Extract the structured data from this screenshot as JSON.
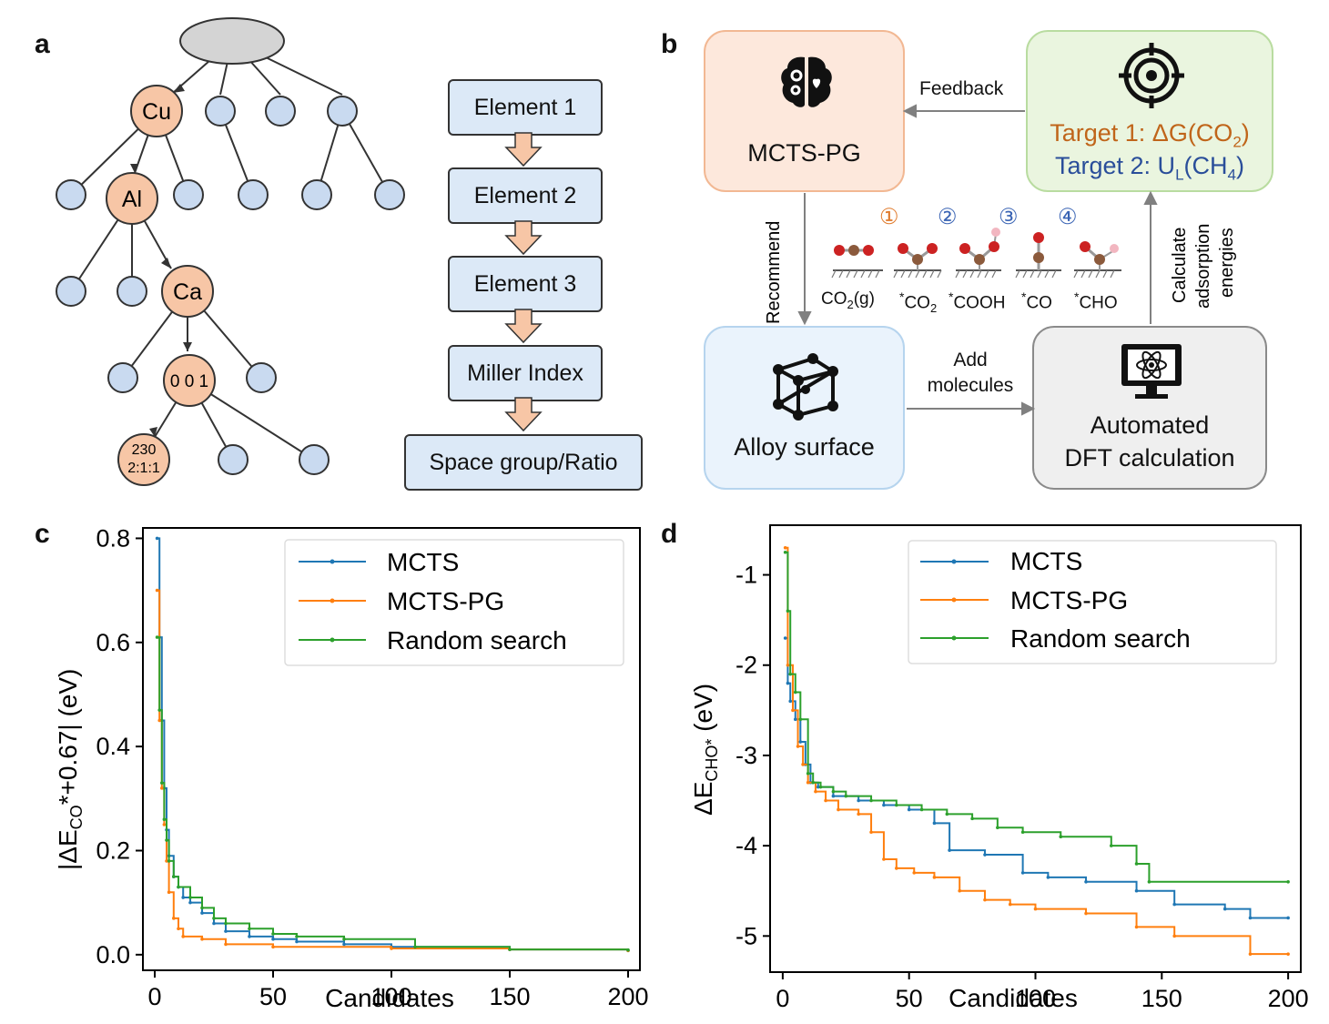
{
  "panels": {
    "a": "a",
    "b": "b",
    "c": "c",
    "d": "d"
  },
  "tree": {
    "node_cu": "Cu",
    "node_al": "Al",
    "node_ca": "Ca",
    "node_miller": "0 0 1",
    "node_sg_line1": "230",
    "node_sg_line2": "2:1:1"
  },
  "flow": [
    "Element 1",
    "Element 2",
    "Element 3",
    "Miller Index",
    "Space group/Ratio"
  ],
  "workflow": {
    "mcts_pg": "MCTS-PG",
    "feedback": "Feedback",
    "target1_prefix": "Target 1: ΔG(CO",
    "target1_sub": "2",
    "target1_suffix": ")",
    "target2_prefix": "Target 2: U",
    "target2_sub1": "L",
    "target2_mid": "(CH",
    "target2_sub2": "4",
    "target2_suffix": ")",
    "recommend": "Recommend",
    "calc_line1": "Calculate",
    "calc_line2": "adsorption",
    "calc_line3": "energies",
    "alloy": "Alloy surface",
    "add_line1": "Add",
    "add_line2": "molecules",
    "dft_line1": "Automated",
    "dft_line2": "DFT calculation",
    "steps": [
      "①",
      "②",
      "③",
      "④"
    ],
    "species": [
      "CO2(g)",
      "*CO2",
      "*COOH",
      "*CO",
      "*CHO"
    ],
    "colors": {
      "target1": "#c0651a",
      "target2": "#2a4e9a",
      "step1": "#e07a2b",
      "step_other": "#3a64b4"
    }
  },
  "chart_data": [
    {
      "panel": "c",
      "type": "line",
      "xlabel": "Candidates",
      "ylabel": "|ΔE_CO*+0.67| (eV)",
      "xlim": [
        -5,
        205
      ],
      "ylim": [
        -0.03,
        0.82
      ],
      "xticks": [
        0,
        50,
        100,
        150,
        200
      ],
      "yticks": [
        0.0,
        0.2,
        0.4,
        0.6,
        0.8
      ],
      "ytick_labels": [
        "0.0",
        "0.2",
        "0.4",
        "0.6",
        "0.8"
      ],
      "legend": "top-right",
      "series": [
        {
          "name": "MCTS",
          "color": "#1f77b4",
          "points": [
            [
              1,
              0.8
            ],
            [
              2,
              0.61
            ],
            [
              3,
              0.45
            ],
            [
              4,
              0.32
            ],
            [
              5,
              0.24
            ],
            [
              6,
              0.19
            ],
            [
              8,
              0.15
            ],
            [
              10,
              0.13
            ],
            [
              12,
              0.11
            ],
            [
              15,
              0.1
            ],
            [
              20,
              0.08
            ],
            [
              25,
              0.06
            ],
            [
              30,
              0.045
            ],
            [
              40,
              0.035
            ],
            [
              50,
              0.03
            ],
            [
              60,
              0.025
            ],
            [
              80,
              0.02
            ],
            [
              100,
              0.015
            ],
            [
              150,
              0.01
            ],
            [
              200,
              0.008
            ]
          ]
        },
        {
          "name": "MCTS-PG",
          "color": "#ff7f0e",
          "points": [
            [
              1,
              0.7
            ],
            [
              2,
              0.45
            ],
            [
              3,
              0.32
            ],
            [
              4,
              0.25
            ],
            [
              5,
              0.18
            ],
            [
              6,
              0.12
            ],
            [
              8,
              0.07
            ],
            [
              10,
              0.05
            ],
            [
              12,
              0.035
            ],
            [
              20,
              0.03
            ],
            [
              30,
              0.02
            ],
            [
              50,
              0.015
            ],
            [
              100,
              0.012
            ],
            [
              150,
              0.01
            ],
            [
              200,
              0.008
            ]
          ]
        },
        {
          "name": "Random search",
          "color": "#2ca02c",
          "points": [
            [
              1,
              0.61
            ],
            [
              2,
              0.47
            ],
            [
              3,
              0.33
            ],
            [
              4,
              0.26
            ],
            [
              5,
              0.22
            ],
            [
              6,
              0.18
            ],
            [
              8,
              0.15
            ],
            [
              10,
              0.13
            ],
            [
              15,
              0.11
            ],
            [
              20,
              0.09
            ],
            [
              25,
              0.07
            ],
            [
              30,
              0.06
            ],
            [
              40,
              0.05
            ],
            [
              50,
              0.04
            ],
            [
              60,
              0.035
            ],
            [
              80,
              0.03
            ],
            [
              110,
              0.015
            ],
            [
              150,
              0.01
            ],
            [
              200,
              0.009
            ]
          ]
        }
      ]
    },
    {
      "panel": "d",
      "type": "line",
      "xlabel": "Candidates",
      "ylabel": "ΔE_CHO* (eV)",
      "xlim": [
        -5,
        205
      ],
      "ylim": [
        -5.4,
        -0.45
      ],
      "xticks": [
        0,
        50,
        100,
        150,
        200
      ],
      "yticks": [
        -1,
        -2,
        -3,
        -4,
        -5
      ],
      "ytick_labels": [
        "-1",
        "-2",
        "-3",
        "-4",
        "-5"
      ],
      "legend": "top-right",
      "series": [
        {
          "name": "MCTS",
          "color": "#1f77b4",
          "points": [
            [
              1,
              -1.7
            ],
            [
              2,
              -2.2
            ],
            [
              3,
              -2.4
            ],
            [
              5,
              -2.6
            ],
            [
              7,
              -2.85
            ],
            [
              9,
              -3.1
            ],
            [
              11,
              -3.3
            ],
            [
              14,
              -3.35
            ],
            [
              20,
              -3.45
            ],
            [
              30,
              -3.5
            ],
            [
              40,
              -3.55
            ],
            [
              50,
              -3.6
            ],
            [
              60,
              -3.75
            ],
            [
              66,
              -4.05
            ],
            [
              80,
              -4.1
            ],
            [
              95,
              -4.3
            ],
            [
              105,
              -4.35
            ],
            [
              120,
              -4.4
            ],
            [
              140,
              -4.5
            ],
            [
              155,
              -4.65
            ],
            [
              175,
              -4.7
            ],
            [
              185,
              -4.8
            ],
            [
              200,
              -4.8
            ]
          ]
        },
        {
          "name": "MCTS-PG",
          "color": "#ff7f0e",
          "points": [
            [
              1,
              -0.7
            ],
            [
              2,
              -2.0
            ],
            [
              4,
              -2.5
            ],
            [
              6,
              -2.9
            ],
            [
              8,
              -3.1
            ],
            [
              10,
              -3.3
            ],
            [
              13,
              -3.4
            ],
            [
              17,
              -3.5
            ],
            [
              22,
              -3.6
            ],
            [
              30,
              -3.65
            ],
            [
              35,
              -3.85
            ],
            [
              40,
              -4.15
            ],
            [
              45,
              -4.25
            ],
            [
              52,
              -4.3
            ],
            [
              60,
              -4.35
            ],
            [
              70,
              -4.5
            ],
            [
              80,
              -4.6
            ],
            [
              90,
              -4.65
            ],
            [
              100,
              -4.7
            ],
            [
              120,
              -4.75
            ],
            [
              140,
              -4.9
            ],
            [
              155,
              -5.0
            ],
            [
              185,
              -5.2
            ],
            [
              200,
              -5.2
            ]
          ]
        },
        {
          "name": "Random search",
          "color": "#2ca02c",
          "points": [
            [
              1,
              -0.75
            ],
            [
              2,
              -1.4
            ],
            [
              3,
              -2.1
            ],
            [
              5,
              -2.3
            ],
            [
              7,
              -2.6
            ],
            [
              10,
              -3.2
            ],
            [
              12,
              -3.3
            ],
            [
              15,
              -3.35
            ],
            [
              20,
              -3.4
            ],
            [
              25,
              -3.45
            ],
            [
              35,
              -3.5
            ],
            [
              45,
              -3.55
            ],
            [
              55,
              -3.6
            ],
            [
              65,
              -3.65
            ],
            [
              75,
              -3.7
            ],
            [
              85,
              -3.8
            ],
            [
              95,
              -3.85
            ],
            [
              110,
              -3.9
            ],
            [
              130,
              -4.0
            ],
            [
              140,
              -4.2
            ],
            [
              145,
              -4.4
            ],
            [
              200,
              -4.4
            ]
          ]
        }
      ]
    }
  ]
}
